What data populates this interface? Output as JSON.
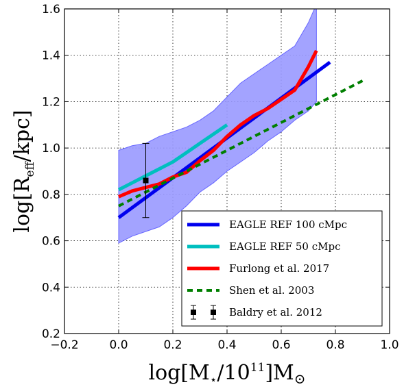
{
  "chart_data": {
    "type": "line",
    "xlabel_parts": {
      "base": "log[M",
      "sub": "⋆",
      "mid": "/10",
      "sup": "11",
      "end": "]M",
      "sub2": "⊙"
    },
    "ylabel_parts": {
      "base": "log[R",
      "sub": "eff",
      "end": "/kpc]"
    },
    "xlim": [
      -0.2,
      1.0
    ],
    "ylim": [
      0.2,
      1.6
    ],
    "xticks": [
      -0.2,
      0.0,
      0.2,
      0.4,
      0.6,
      0.8,
      1.0
    ],
    "xtick_labels": [
      "−0.2",
      "0.0",
      "0.2",
      "0.4",
      "0.6",
      "0.8",
      "1.0"
    ],
    "yticks": [
      0.2,
      0.4,
      0.6,
      0.8,
      1.0,
      1.2,
      1.4,
      1.6
    ],
    "ytick_labels": [
      "0.2",
      "0.4",
      "0.6",
      "0.8",
      "1.0",
      "1.2",
      "1.4",
      "1.6"
    ],
    "grid": true,
    "legend_position": "lower-right",
    "band": {
      "color": "#9999ff",
      "upper": [
        [
          0.0,
          0.99
        ],
        [
          0.05,
          1.01
        ],
        [
          0.1,
          1.02
        ],
        [
          0.15,
          1.05
        ],
        [
          0.2,
          1.07
        ],
        [
          0.25,
          1.09
        ],
        [
          0.3,
          1.12
        ],
        [
          0.35,
          1.16
        ],
        [
          0.4,
          1.22
        ],
        [
          0.45,
          1.28
        ],
        [
          0.5,
          1.32
        ],
        [
          0.55,
          1.36
        ],
        [
          0.6,
          1.4
        ],
        [
          0.65,
          1.44
        ],
        [
          0.7,
          1.54
        ],
        [
          0.73,
          1.62
        ]
      ],
      "lower": [
        [
          0.0,
          0.59
        ],
        [
          0.05,
          0.62
        ],
        [
          0.1,
          0.64
        ],
        [
          0.15,
          0.66
        ],
        [
          0.2,
          0.7
        ],
        [
          0.25,
          0.75
        ],
        [
          0.3,
          0.81
        ],
        [
          0.35,
          0.85
        ],
        [
          0.4,
          0.9
        ],
        [
          0.45,
          0.94
        ],
        [
          0.5,
          0.98
        ],
        [
          0.55,
          1.03
        ],
        [
          0.6,
          1.07
        ],
        [
          0.65,
          1.12
        ],
        [
          0.7,
          1.16
        ],
        [
          0.73,
          1.2
        ]
      ]
    },
    "series": [
      {
        "name": "EAGLE REF 100 cMpc",
        "color": "#0000ee",
        "dash": "solid",
        "width": 5,
        "points": [
          [
            0.0,
            0.7
          ],
          [
            0.78,
            1.37
          ]
        ]
      },
      {
        "name": "EAGLE REF 50 cMpc",
        "color": "#00bfbf",
        "dash": "solid",
        "width": 5,
        "points": [
          [
            0.0,
            0.82
          ],
          [
            0.05,
            0.85
          ],
          [
            0.1,
            0.88
          ],
          [
            0.15,
            0.91
          ],
          [
            0.2,
            0.94
          ],
          [
            0.25,
            0.98
          ],
          [
            0.3,
            1.02
          ],
          [
            0.35,
            1.06
          ],
          [
            0.4,
            1.1
          ]
        ]
      },
      {
        "name": "Furlong et al. 2017",
        "color": "#ff0000",
        "dash": "solid",
        "width": 5,
        "points": [
          [
            0.0,
            0.79
          ],
          [
            0.05,
            0.815
          ],
          [
            0.1,
            0.83
          ],
          [
            0.15,
            0.845
          ],
          [
            0.2,
            0.875
          ],
          [
            0.25,
            0.895
          ],
          [
            0.3,
            0.945
          ],
          [
            0.35,
            0.99
          ],
          [
            0.4,
            1.05
          ],
          [
            0.45,
            1.1
          ],
          [
            0.5,
            1.14
          ],
          [
            0.55,
            1.17
          ],
          [
            0.6,
            1.21
          ],
          [
            0.65,
            1.25
          ],
          [
            0.7,
            1.35
          ],
          [
            0.73,
            1.42
          ]
        ]
      },
      {
        "name": "Shen et al. 2003",
        "color": "#007f00",
        "dash": "dashed",
        "width": 4,
        "points": [
          [
            0.0,
            0.75
          ],
          [
            0.9,
            1.29
          ]
        ]
      }
    ],
    "errorbar": {
      "name": "Baldry et al. 2012",
      "color": "#000000",
      "x": 0.1,
      "y": 0.86,
      "yerr_low": 0.16,
      "yerr_high": 0.16
    }
  }
}
